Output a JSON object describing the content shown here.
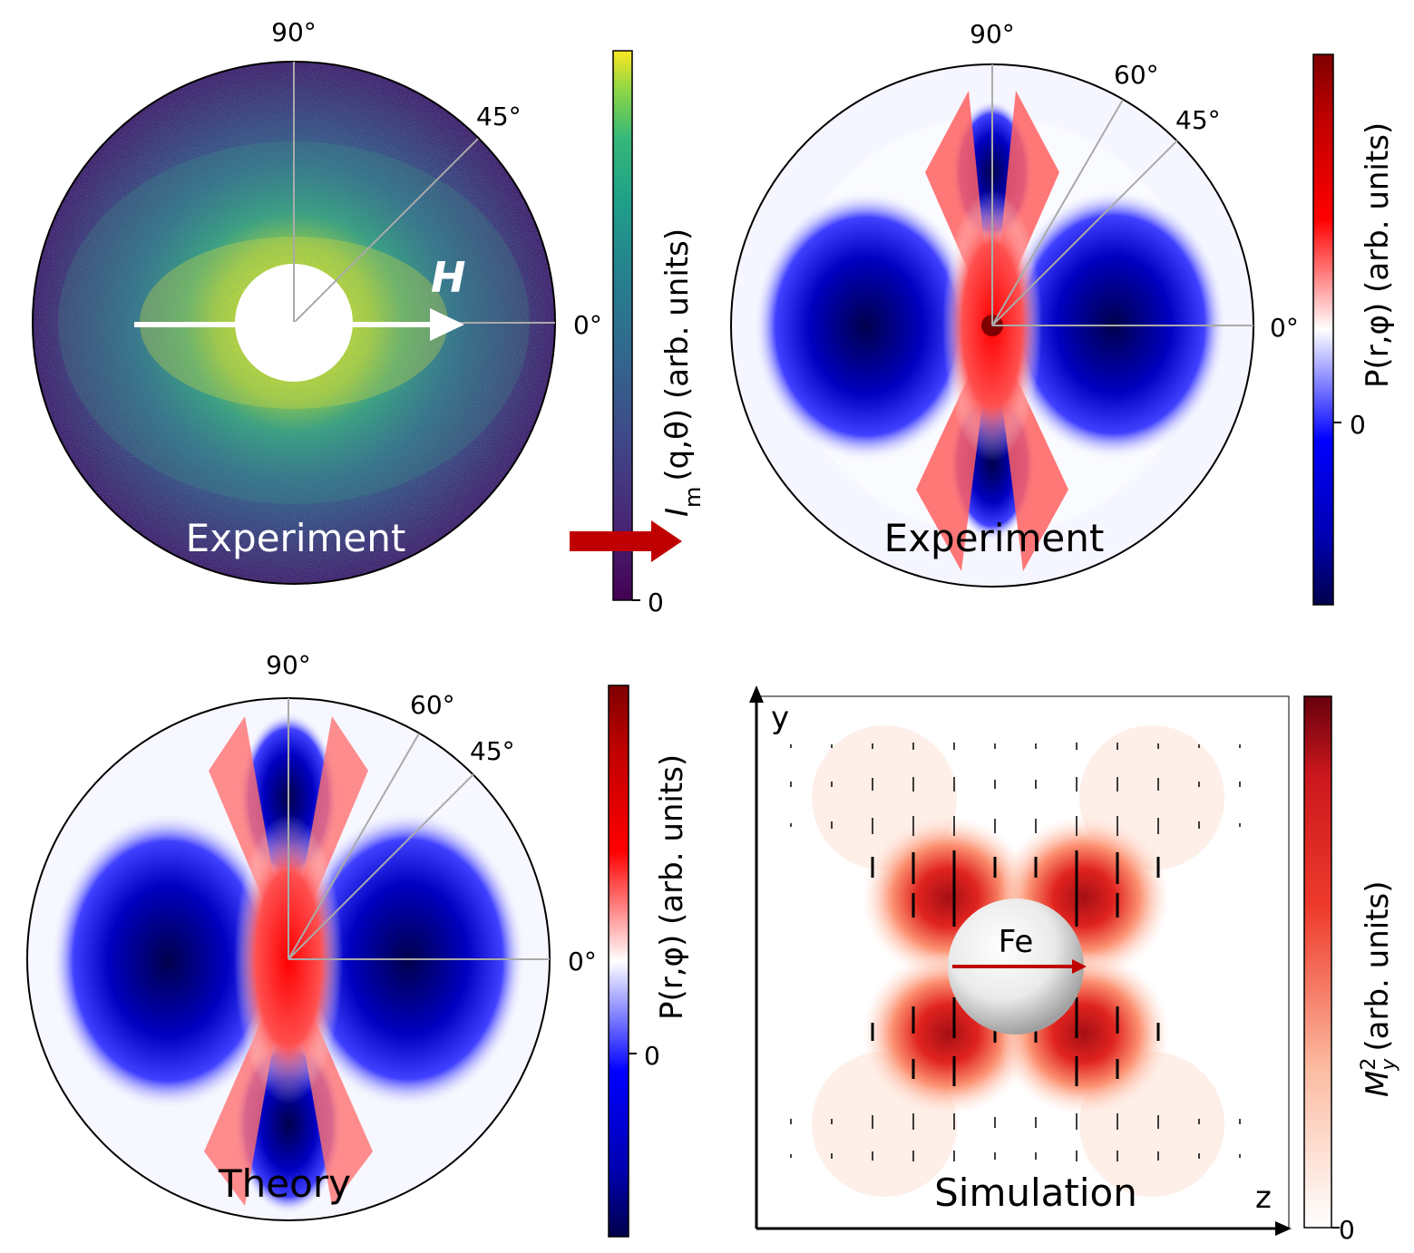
{
  "panels": {
    "top_left": {
      "label": "Experiment",
      "angles": [
        "90°",
        "45°",
        "0°"
      ],
      "field_label": "H",
      "colorbar": {
        "label_main": "I",
        "label_sub": "m",
        "label_rest": "(q,θ) (arb. units)",
        "zero": "0",
        "colormap": "viridis"
      }
    },
    "top_right": {
      "label": "Experiment",
      "angles": [
        "90°",
        "60°",
        "45°",
        "0°"
      ],
      "colorbar": {
        "label": "P(r,φ) (arb. units)",
        "zero": "0",
        "colormap": "blue-white-red"
      }
    },
    "bottom_left": {
      "label": "Theory",
      "angles": [
        "90°",
        "60°",
        "45°",
        "0°"
      ],
      "colorbar": {
        "label": "P(r,φ) (arb. units)",
        "zero": "0",
        "colormap": "blue-white-red"
      }
    },
    "bottom_right": {
      "label": "Simulation",
      "particle_label": "Fe",
      "axis_x": "z",
      "axis_y": "y",
      "colorbar": {
        "label_main": "M",
        "label_sup": "2",
        "label_sub": "y",
        "label_rest": "(arb. units)",
        "zero": "0",
        "colormap": "white-red"
      }
    }
  },
  "colors": {
    "viridis_dark": "#440154",
    "viridis_mid": "#31688e",
    "viridis_bright": "#fde725",
    "red": "#c00000",
    "blue": "#0000cc",
    "guide_line": "#aaaaaa"
  }
}
